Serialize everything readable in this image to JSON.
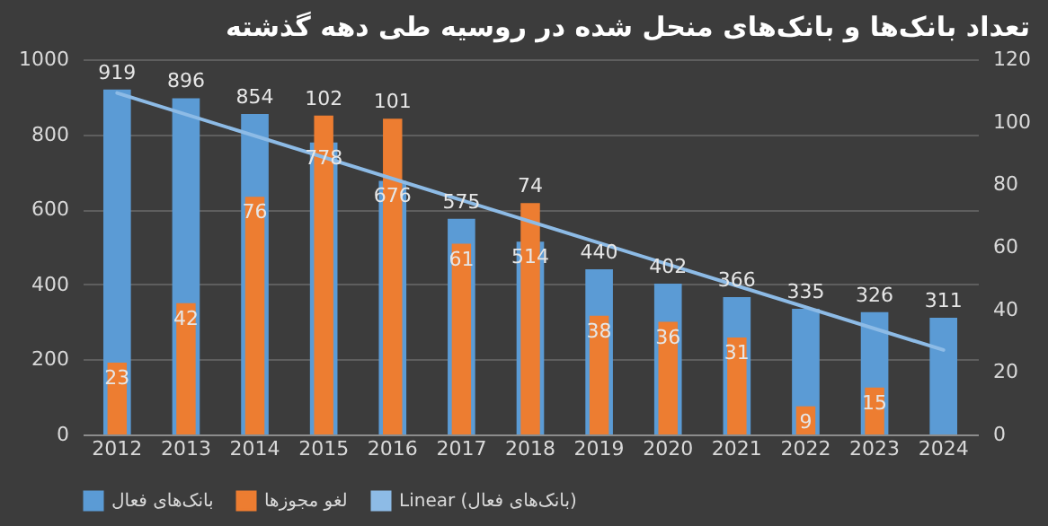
{
  "chart_data": {
    "type": "bar",
    "title": "تعداد بانک‌ها و بانک‌های منحل شده در روسیه طی دهه گذشته",
    "categories": [
      "2012",
      "2013",
      "2014",
      "2015",
      "2016",
      "2017",
      "2018",
      "2019",
      "2020",
      "2021",
      "2022",
      "2023",
      "2024"
    ],
    "series": [
      {
        "name": "بانک‌های فعال",
        "color": "#5b9bd5",
        "values": [
          919,
          896,
          854,
          778,
          676,
          575,
          514,
          440,
          402,
          366,
          335,
          326,
          311
        ],
        "value_labels": [
          "919",
          "896",
          "854",
          "778",
          "676",
          "575",
          "514",
          "440",
          "402",
          "366",
          "335",
          "326",
          "311"
        ]
      },
      {
        "name": "لغو مجوزها",
        "color": "#ed7d31",
        "axis": "y2",
        "values": [
          23,
          42,
          76,
          102,
          101,
          61,
          74,
          38,
          36,
          31,
          9,
          15,
          null
        ],
        "value_labels": [
          "23",
          "42",
          "76",
          "102",
          "101",
          "61",
          "74",
          "38",
          "36",
          "31",
          "9",
          "15",
          null
        ]
      },
      {
        "name": "Linear (بانک‌های فعال)",
        "type": "line",
        "color": "#8dbbe6",
        "values": [
          910,
          null,
          null,
          null,
          null,
          null,
          null,
          null,
          null,
          null,
          null,
          null,
          225
        ]
      }
    ],
    "ylim": [
      0,
      1000
    ],
    "yticks": [
      0,
      200,
      400,
      600,
      800,
      1000
    ],
    "y2lim": [
      0,
      120
    ],
    "y2ticks": [
      0,
      20,
      40,
      60,
      80,
      100,
      120
    ],
    "grid": "y",
    "legend": "bottom"
  }
}
